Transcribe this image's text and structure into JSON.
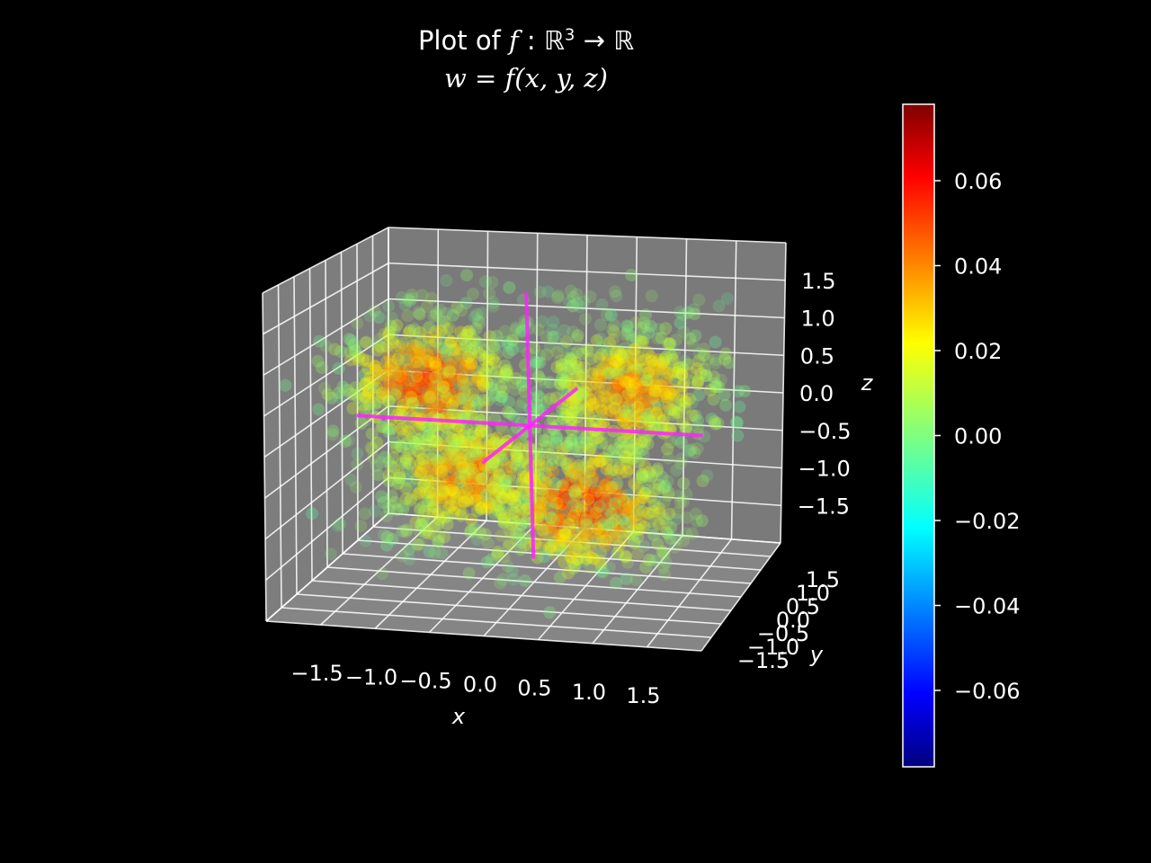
{
  "chart_data": {
    "type": "scatter",
    "subtype": "3d-volumetric-scatter",
    "title": {
      "line1_prefix": "Plot of ",
      "line1_f": "f",
      "line1_map": " : ℝ",
      "line1_sup": "3",
      "line1_arrow": " → ℝ",
      "line2": "w = f(x, y, z)"
    },
    "xlabel": "x",
    "ylabel": "y",
    "zlabel": "z",
    "x_ticks": [
      "−1.5",
      "−1.0",
      "−0.5",
      "0.0",
      "0.5",
      "1.0",
      "1.5"
    ],
    "y_ticks": [
      "−1.5",
      "−1.0",
      "−0.5",
      "0.0",
      "0.5",
      "1.0",
      "1.5"
    ],
    "z_ticks": [
      "−1.5",
      "−1.0",
      "−0.5",
      "0.0",
      "0.5",
      "1.0",
      "1.5"
    ],
    "xlim": [
      -2,
      2
    ],
    "ylim": [
      -2,
      2
    ],
    "zlim": [
      -2,
      2
    ],
    "grid": true,
    "colormap": "jet",
    "colorbar": {
      "vmin": -0.078,
      "vmax": 0.078,
      "ticks": [
        "−0.06",
        "−0.04",
        "−0.02",
        "0.00",
        "0.02",
        "0.04",
        "0.06"
      ],
      "tick_values": [
        -0.06,
        -0.04,
        -0.02,
        0.0,
        0.02,
        0.04,
        0.06
      ]
    },
    "blobs": [
      {
        "x": -1.0,
        "y": 0.0,
        "z": 0.5,
        "w": 0.055,
        "label": "upper-left lobe"
      },
      {
        "x": 1.0,
        "y": 0.0,
        "z": 0.5,
        "w": 0.045,
        "label": "upper-right lobe"
      },
      {
        "x": -0.6,
        "y": 0.0,
        "z": -0.7,
        "w": 0.045,
        "label": "lower-left lobe"
      },
      {
        "x": 0.5,
        "y": 0.0,
        "z": -1.0,
        "w": 0.06,
        "label": "lower-right lobe"
      }
    ],
    "coordinate_axes_lines": {
      "color": "#ff22ff",
      "range": [
        -1.7,
        1.7
      ]
    }
  },
  "colors": {
    "background": "#000000",
    "pane": "#7a7a7a",
    "grid": "#ffffff",
    "axis_lines": "#ff22ff"
  }
}
